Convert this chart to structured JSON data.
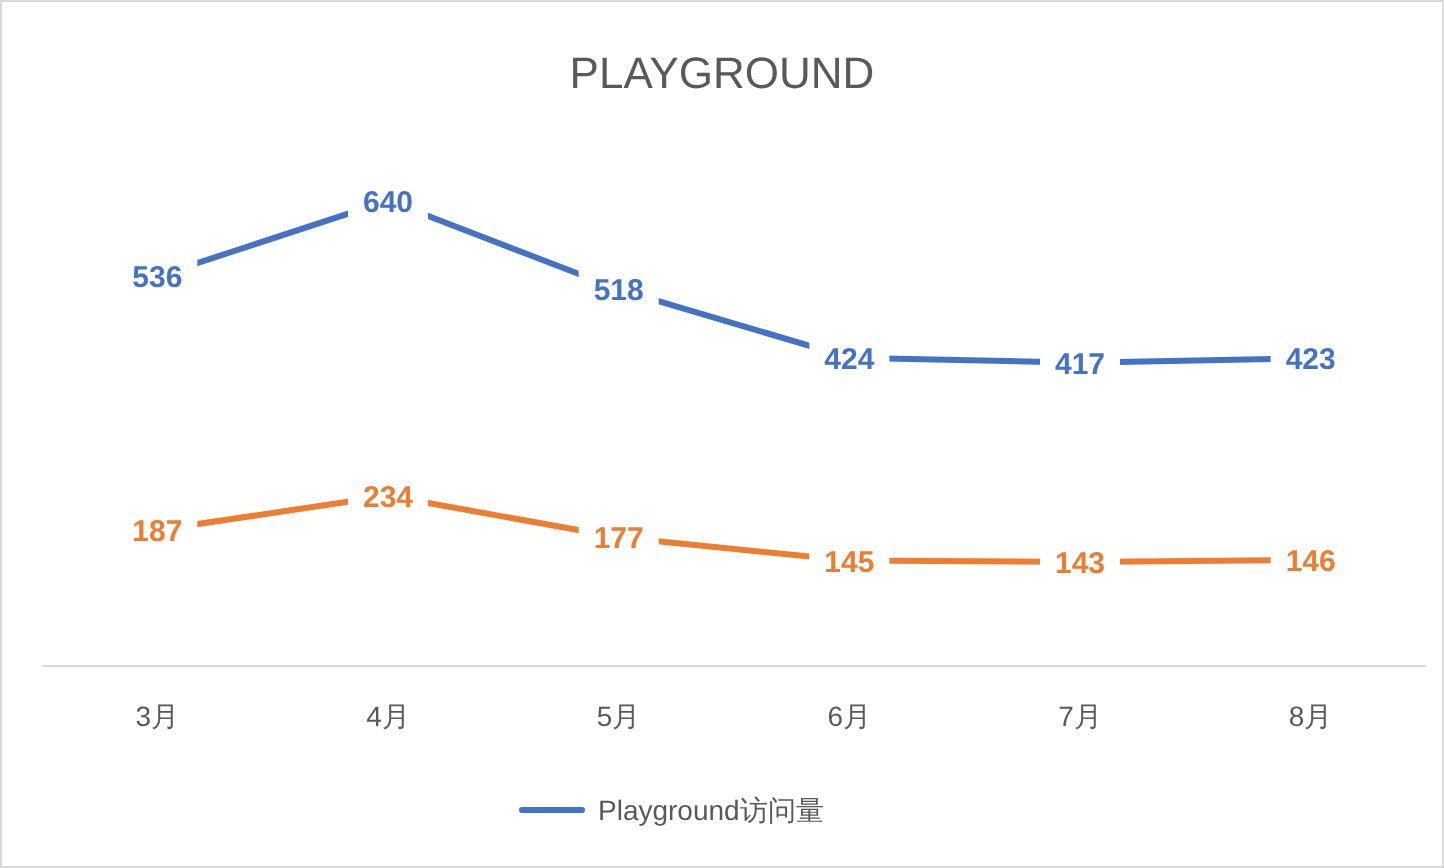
{
  "chart_data": {
    "type": "line",
    "title": "PLAYGROUND",
    "categories": [
      "3月",
      "4月",
      "5月",
      "6月",
      "7月",
      "8月"
    ],
    "series": [
      {
        "name": "Playground访问量",
        "color": "#4472c4",
        "values": [
          536,
          640,
          518,
          424,
          417,
          423
        ]
      },
      {
        "color": "#ed7d31",
        "values": [
          187,
          234,
          177,
          145,
          143,
          146
        ]
      }
    ],
    "data_labels": true,
    "legend": "bottom",
    "tick_labels": "x",
    "line_style": "solid",
    "grid": false
  }
}
